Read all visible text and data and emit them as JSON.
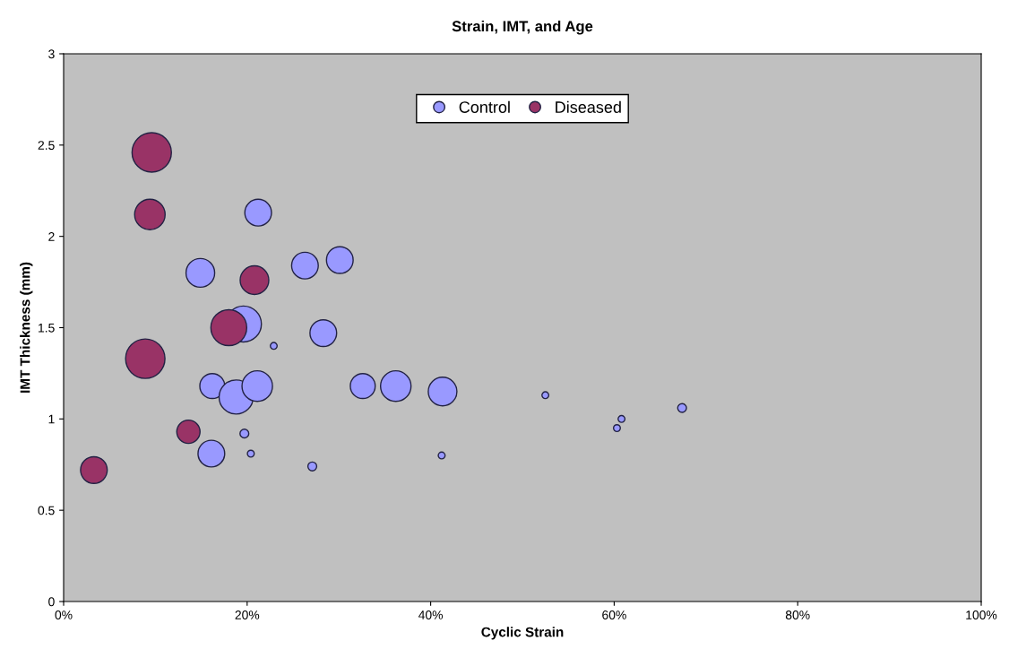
{
  "chart_data": {
    "type": "bubble",
    "title": "Strain, IMT, and Age",
    "xlabel": "Cyclic Strain",
    "ylabel": "IMT Thickness (mm)",
    "xlim": [
      0,
      1
    ],
    "xticks": [
      {
        "value": 0,
        "label": "0%"
      },
      {
        "value": 0.2,
        "label": "20%"
      },
      {
        "value": 0.4,
        "label": "40%"
      },
      {
        "value": 0.6,
        "label": "60%"
      },
      {
        "value": 0.8,
        "label": "80%"
      },
      {
        "value": 1,
        "label": "100%"
      }
    ],
    "ylim": [
      0,
      3
    ],
    "yticks": [
      0,
      0.5,
      1,
      1.5,
      2,
      2.5,
      3
    ],
    "grid": false,
    "legend": "top",
    "series": [
      {
        "name": "Control",
        "color": "#9999ff",
        "x": [
          0.212,
          0.149,
          0.263,
          0.301,
          0.196,
          0.229,
          0.283,
          0.162,
          0.188,
          0.211,
          0.326,
          0.362,
          0.413,
          0.197,
          0.161,
          0.204,
          0.271,
          0.412,
          0.525,
          0.603,
          0.608,
          0.674
        ],
        "values": [
          2.13,
          1.8,
          1.84,
          1.87,
          1.52,
          1.4,
          1.47,
          1.18,
          1.12,
          1.18,
          1.18,
          1.18,
          1.15,
          0.92,
          0.81,
          0.81,
          0.74,
          0.8,
          1.13,
          0.95,
          1.0,
          1.06
        ],
        "sizes": [
          0.46,
          0.53,
          0.46,
          0.46,
          0.83,
          0.03,
          0.46,
          0.4,
          0.75,
          0.6,
          0.4,
          0.6,
          0.53,
          0.05,
          0.46,
          0.03,
          0.05,
          0.03,
          0.03,
          0.03,
          0.03,
          0.05
        ]
      },
      {
        "name": "Diseased",
        "color": "#993366",
        "x": [
          0.096,
          0.094,
          0.208,
          0.18,
          0.089,
          0.136,
          0.033
        ],
        "values": [
          2.46,
          2.12,
          1.76,
          1.5,
          1.33,
          0.93,
          0.72
        ],
        "sizes": [
          1,
          0.6,
          0.53,
          0.83,
          1,
          0.35,
          0.46
        ]
      }
    ]
  }
}
